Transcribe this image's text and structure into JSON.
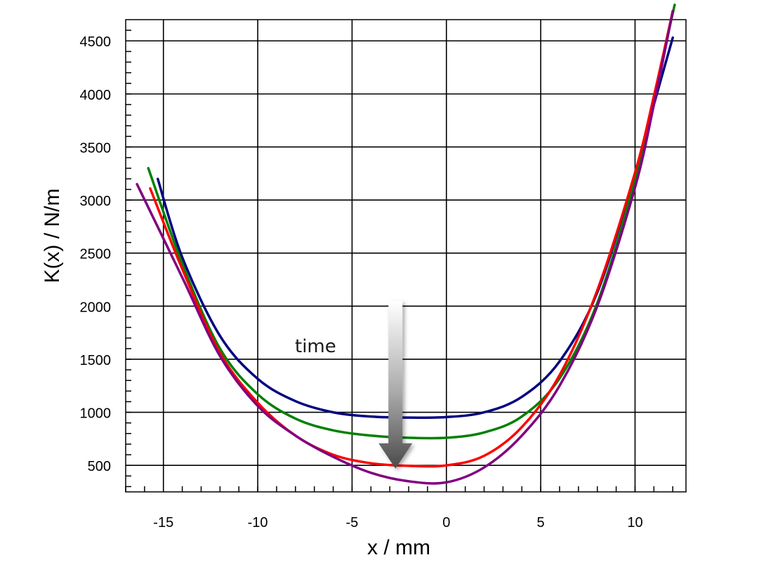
{
  "chart_data": {
    "type": "line",
    "title": "",
    "xlabel": "x / mm",
    "ylabel": "K(x) / N/m",
    "xlim": [
      -17,
      12.7
    ],
    "ylim": [
      250,
      4700
    ],
    "xticks": [
      -15,
      -10,
      -5,
      0,
      5,
      10
    ],
    "yticks": [
      500,
      1000,
      1500,
      2000,
      2500,
      3000,
      3500,
      4000,
      4500
    ],
    "grid": true,
    "legend": "none",
    "annotation": {
      "text": "time",
      "arrow_x": -2.7,
      "arrow_from_y": 2050,
      "arrow_to_y": 470
    },
    "series": [
      {
        "color": "#000080",
        "x": [
          -15.3,
          -14,
          -12,
          -10,
          -8,
          -6,
          -4,
          -2,
          0,
          2,
          4,
          6,
          8,
          10,
          11,
          12
        ],
        "y": [
          3200,
          2460,
          1720,
          1315,
          1105,
          1000,
          960,
          950,
          955,
          1000,
          1145,
          1480,
          2130,
          3250,
          3900,
          4530
        ]
      },
      {
        "color": "#008000",
        "x": [
          -15.8,
          -14,
          -12,
          -10,
          -8,
          -6,
          -4,
          -2,
          0,
          2,
          4,
          6,
          8,
          10,
          11,
          12.1
        ],
        "y": [
          3300,
          2400,
          1600,
          1170,
          940,
          830,
          780,
          760,
          760,
          810,
          960,
          1320,
          2030,
          3190,
          3970,
          4840
        ]
      },
      {
        "color": "#ff0000",
        "x": [
          -15.7,
          -14,
          -12,
          -10,
          -8,
          -6,
          -4,
          -2,
          0,
          2,
          4,
          6,
          8,
          10,
          11,
          12
        ],
        "y": [
          3110,
          2350,
          1560,
          1090,
          780,
          600,
          520,
          495,
          500,
          590,
          860,
          1350,
          2150,
          3260,
          3980,
          4780
        ]
      },
      {
        "color": "#800080",
        "x": [
          -16.4,
          -14,
          -12,
          -10,
          -8,
          -6,
          -4,
          -2,
          0,
          2,
          4,
          6,
          8,
          10,
          11,
          12
        ],
        "y": [
          3150,
          2270,
          1530,
          1060,
          780,
          580,
          430,
          350,
          340,
          480,
          780,
          1250,
          2000,
          3120,
          3900,
          4780
        ]
      }
    ]
  }
}
